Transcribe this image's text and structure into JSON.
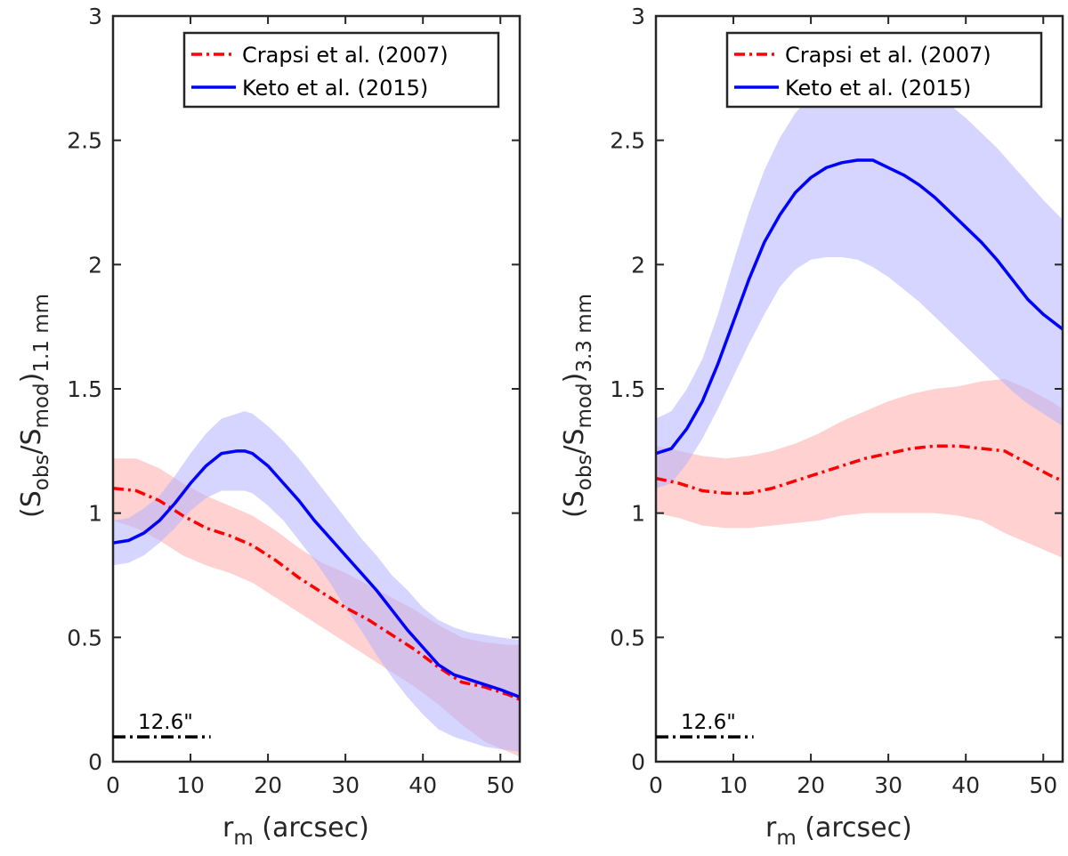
{
  "chart_data": [
    {
      "type": "line",
      "panel": "left",
      "xlabel": "r",
      "xlabel_sub": "m",
      "xlabel_unit": " (arcsec)",
      "ylabel": {
        "open": "(S",
        "sub1": "obs",
        "slash": "/S",
        "sub2": "mod",
        "close": ")",
        "sub3": "1.1 mm"
      },
      "xlim": [
        0,
        52.5
      ],
      "ylim": [
        0,
        3
      ],
      "xticks": [
        "0",
        "10",
        "20",
        "30",
        "40",
        "50"
      ],
      "yticks": [
        "0",
        "0.5",
        "1",
        "1.5",
        "2",
        "2.5",
        "3"
      ],
      "legend": [
        "Crapsi et al. (2007)",
        "Keto et al. (2015)"
      ],
      "scale_bar": {
        "label": "12.6\"",
        "x0": 0,
        "x1": 12.6,
        "y": 0.1
      },
      "colors": {
        "crapsi": "#ff0000",
        "keto": "#0000ff",
        "crapsi_band": "#ffb3b3",
        "keto_band": "#b3b3ff"
      },
      "series": [
        {
          "name": "Crapsi et al. (2007)",
          "x": [
            0,
            3,
            6,
            9,
            12,
            15,
            18,
            21,
            24,
            27,
            30,
            33,
            36,
            39,
            42,
            45,
            48,
            51,
            52.5
          ],
          "y": [
            1.1,
            1.09,
            1.05,
            0.99,
            0.94,
            0.91,
            0.87,
            0.81,
            0.74,
            0.68,
            0.62,
            0.57,
            0.51,
            0.45,
            0.38,
            0.32,
            0.3,
            0.27,
            0.25
          ],
          "lower": [
            0.97,
            0.94,
            0.89,
            0.83,
            0.79,
            0.76,
            0.72,
            0.66,
            0.6,
            0.54,
            0.48,
            0.42,
            0.36,
            0.3,
            0.23,
            0.15,
            0.08,
            0.04,
            0.02
          ],
          "upper": [
            1.22,
            1.22,
            1.18,
            1.12,
            1.07,
            1.03,
            0.99,
            0.93,
            0.86,
            0.8,
            0.76,
            0.71,
            0.66,
            0.61,
            0.55,
            0.5,
            0.48,
            0.47,
            0.47
          ]
        },
        {
          "name": "Keto et al. (2015)",
          "x": [
            0,
            2,
            4,
            6,
            8,
            10,
            12,
            14,
            16,
            17,
            18,
            20,
            22,
            24,
            26,
            28,
            30,
            32,
            34,
            36,
            38,
            40,
            42,
            44,
            46,
            48,
            50,
            52.5
          ],
          "y": [
            0.88,
            0.89,
            0.92,
            0.97,
            1.04,
            1.12,
            1.19,
            1.24,
            1.25,
            1.25,
            1.24,
            1.19,
            1.12,
            1.05,
            0.97,
            0.9,
            0.83,
            0.76,
            0.69,
            0.61,
            0.53,
            0.46,
            0.39,
            0.35,
            0.33,
            0.31,
            0.29,
            0.26
          ],
          "lower": [
            0.79,
            0.8,
            0.83,
            0.88,
            0.94,
            1.01,
            1.06,
            1.09,
            1.09,
            1.09,
            1.08,
            1.03,
            0.97,
            0.89,
            0.81,
            0.72,
            0.62,
            0.53,
            0.43,
            0.34,
            0.26,
            0.19,
            0.13,
            0.1,
            0.08,
            0.06,
            0.05,
            0.04
          ],
          "upper": [
            0.97,
            0.98,
            1.02,
            1.07,
            1.15,
            1.24,
            1.32,
            1.38,
            1.4,
            1.41,
            1.4,
            1.35,
            1.29,
            1.22,
            1.14,
            1.06,
            0.98,
            0.9,
            0.83,
            0.75,
            0.69,
            0.62,
            0.57,
            0.54,
            0.52,
            0.51,
            0.5,
            0.49
          ]
        }
      ]
    },
    {
      "type": "line",
      "panel": "right",
      "xlabel": "r",
      "xlabel_sub": "m",
      "xlabel_unit": " (arcsec)",
      "ylabel": {
        "open": "(S",
        "sub1": "obs",
        "slash": "/S",
        "sub2": "mod",
        "close": ")",
        "sub3": "3.3 mm"
      },
      "xlim": [
        0,
        52.5
      ],
      "ylim": [
        0,
        3
      ],
      "xticks": [
        "0",
        "10",
        "20",
        "30",
        "40",
        "50"
      ],
      "yticks": [
        "0",
        "0.5",
        "1",
        "1.5",
        "2",
        "2.5",
        "3"
      ],
      "legend": [
        "Crapsi et al. (2007)",
        "Keto et al. (2015)"
      ],
      "scale_bar": {
        "label": "12.6\"",
        "x0": 0,
        "x1": 12.6,
        "y": 0.1
      },
      "colors": {
        "crapsi": "#ff0000",
        "keto": "#0000ff",
        "crapsi_band": "#ffb3b3",
        "keto_band": "#b3b3ff"
      },
      "series": [
        {
          "name": "Crapsi et al. (2007)",
          "x": [
            0,
            3,
            6,
            9,
            12,
            15,
            18,
            21,
            24,
            27,
            30,
            33,
            36,
            39,
            42,
            45,
            48,
            51,
            52.5
          ],
          "y": [
            1.14,
            1.12,
            1.09,
            1.08,
            1.08,
            1.1,
            1.13,
            1.16,
            1.19,
            1.22,
            1.24,
            1.26,
            1.27,
            1.27,
            1.26,
            1.25,
            1.2,
            1.15,
            1.13
          ],
          "lower": [
            1.0,
            0.98,
            0.95,
            0.94,
            0.94,
            0.95,
            0.96,
            0.97,
            0.99,
            1.0,
            1.0,
            1.0,
            1.0,
            0.99,
            0.97,
            0.92,
            0.88,
            0.84,
            0.82
          ],
          "upper": [
            1.27,
            1.25,
            1.23,
            1.22,
            1.23,
            1.25,
            1.28,
            1.32,
            1.37,
            1.41,
            1.45,
            1.48,
            1.5,
            1.51,
            1.53,
            1.54,
            1.5,
            1.45,
            1.42
          ]
        },
        {
          "name": "Keto et al. (2015)",
          "x": [
            0,
            2,
            4,
            6,
            8,
            10,
            12,
            14,
            16,
            18,
            20,
            22,
            24,
            26,
            28,
            30,
            32,
            34,
            36,
            38,
            40,
            42,
            44,
            46,
            48,
            50,
            52.5
          ],
          "y": [
            1.24,
            1.26,
            1.34,
            1.45,
            1.6,
            1.77,
            1.94,
            2.09,
            2.2,
            2.29,
            2.35,
            2.39,
            2.41,
            2.42,
            2.42,
            2.39,
            2.36,
            2.32,
            2.27,
            2.21,
            2.15,
            2.09,
            2.02,
            1.94,
            1.86,
            1.8,
            1.74
          ],
          "lower": [
            1.1,
            1.12,
            1.2,
            1.3,
            1.42,
            1.55,
            1.68,
            1.8,
            1.91,
            1.98,
            2.02,
            2.03,
            2.03,
            2.02,
            1.99,
            1.95,
            1.9,
            1.85,
            1.79,
            1.73,
            1.67,
            1.61,
            1.55,
            1.49,
            1.44,
            1.4,
            1.35
          ],
          "upper": [
            1.38,
            1.41,
            1.5,
            1.62,
            1.8,
            2.01,
            2.21,
            2.38,
            2.51,
            2.61,
            2.68,
            2.73,
            2.76,
            2.78,
            2.79,
            2.79,
            2.78,
            2.75,
            2.7,
            2.64,
            2.59,
            2.53,
            2.47,
            2.4,
            2.33,
            2.26,
            2.18
          ]
        }
      ]
    }
  ]
}
